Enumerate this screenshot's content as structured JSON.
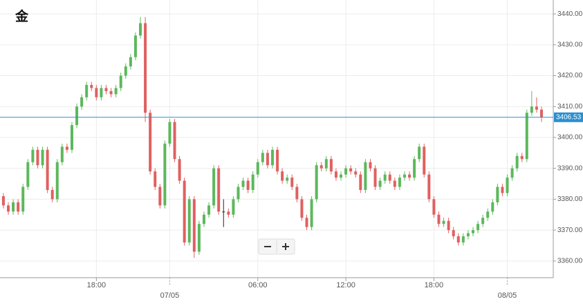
{
  "chart_data": {
    "type": "candlestick",
    "title": "金",
    "open": [
      3381,
      3378,
      3376,
      3379,
      3376,
      3384,
      3392,
      3396,
      3391,
      3396,
      3383,
      3380,
      3392,
      3397,
      3396,
      3404,
      3410,
      3413,
      3417,
      3416,
      3413,
      3416,
      3415,
      3414,
      3416,
      3420,
      3423,
      3426,
      3433,
      3437,
      3408,
      3389,
      3384,
      3378,
      3398,
      3405,
      3393,
      3386,
      3366,
      3380,
      3363,
      3372,
      3375,
      3378,
      3390,
      3376,
      3376,
      3375,
      3380,
      3384,
      3386,
      3383,
      3388,
      3392,
      3395,
      3391,
      3396,
      3389,
      3386,
      3387,
      3384,
      3380,
      3374,
      3371,
      3380,
      3391,
      3390,
      3393,
      3389,
      3387,
      3388,
      3390,
      3389,
      3388,
      3383,
      3392,
      3390,
      3384,
      3386,
      3388,
      3386,
      3384,
      3387,
      3388,
      3387,
      3393,
      3397,
      3388,
      3380,
      3375,
      3372,
      3373,
      3370,
      3368,
      3366,
      3368,
      3369,
      3370,
      3372,
      3374,
      3376,
      3379,
      3384,
      3382,
      3387,
      3390,
      3394,
      3393,
      3408,
      3410,
      3409
    ],
    "high": [
      3382,
      3379,
      3380,
      3380,
      3385,
      3393,
      3397,
      3397,
      3397,
      3397,
      3384,
      3393,
      3398,
      3398,
      3405,
      3411,
      3414,
      3418,
      3418,
      3417,
      3417,
      3417,
      3416,
      3417,
      3421,
      3424,
      3427,
      3434,
      3439,
      3439,
      3409,
      3390,
      3385,
      3399,
      3406,
      3406,
      3394,
      3387,
      3381,
      3381,
      3373,
      3376,
      3379,
      3391,
      3391,
      3380,
      3377,
      3381,
      3385,
      3387,
      3387,
      3389,
      3393,
      3396,
      3396,
      3397,
      3397,
      3390,
      3388,
      3388,
      3385,
      3381,
      3375,
      3381,
      3392,
      3392,
      3394,
      3394,
      3390,
      3389,
      3391,
      3391,
      3390,
      3389,
      3393,
      3393,
      3391,
      3387,
      3389,
      3389,
      3387,
      3388,
      3389,
      3389,
      3394,
      3398,
      3398,
      3389,
      3381,
      3376,
      3374,
      3374,
      3371,
      3369,
      3369,
      3370,
      3371,
      3373,
      3375,
      3377,
      3380,
      3385,
      3385,
      3388,
      3391,
      3395,
      3395,
      3409,
      3415,
      3413,
      3410
    ],
    "low": [
      3377,
      3375,
      3375,
      3375,
      3375,
      3383,
      3391,
      3390,
      3390,
      3382,
      3379,
      3379,
      3391,
      3395,
      3395,
      3403,
      3409,
      3412,
      3415,
      3412,
      3412,
      3414,
      3413,
      3413,
      3415,
      3419,
      3422,
      3425,
      3432,
      3405,
      3388,
      3383,
      3377,
      3377,
      3397,
      3392,
      3385,
      3365,
      3365,
      3361,
      3362,
      3371,
      3374,
      3377,
      3375,
      3371,
      3374,
      3374,
      3379,
      3383,
      3382,
      3382,
      3387,
      3391,
      3390,
      3390,
      3388,
      3385,
      3385,
      3383,
      3379,
      3373,
      3370,
      3370,
      3379,
      3389,
      3389,
      3388,
      3386,
      3386,
      3387,
      3388,
      3387,
      3382,
      3382,
      3389,
      3383,
      3383,
      3385,
      3385,
      3383,
      3383,
      3386,
      3386,
      3386,
      3392,
      3387,
      3379,
      3374,
      3371,
      3371,
      3369,
      3367,
      3365,
      3365,
      3367,
      3368,
      3369,
      3371,
      3373,
      3375,
      3378,
      3381,
      3381,
      3386,
      3389,
      3392,
      3392,
      3407,
      3408,
      3405
    ],
    "close": [
      3378,
      3376,
      3379,
      3376,
      3384,
      3392,
      3396,
      3391,
      3396,
      3383,
      3380,
      3392,
      3397,
      3396,
      3404,
      3410,
      3413,
      3417,
      3416,
      3413,
      3416,
      3415,
      3414,
      3416,
      3420,
      3423,
      3426,
      3433,
      3437,
      3408,
      3389,
      3384,
      3378,
      3398,
      3405,
      3393,
      3386,
      3366,
      3380,
      3363,
      3372,
      3375,
      3378,
      3390,
      3376,
      3376,
      3375,
      3380,
      3384,
      3386,
      3383,
      3388,
      3392,
      3395,
      3391,
      3396,
      3389,
      3386,
      3387,
      3384,
      3380,
      3374,
      3371,
      3380,
      3391,
      3390,
      3393,
      3389,
      3387,
      3388,
      3390,
      3389,
      3388,
      3383,
      3392,
      3390,
      3384,
      3386,
      3388,
      3386,
      3384,
      3387,
      3388,
      3387,
      3393,
      3397,
      3388,
      3380,
      3375,
      3372,
      3373,
      3370,
      3368,
      3366,
      3368,
      3369,
      3370,
      3372,
      3374,
      3376,
      3379,
      3384,
      3382,
      3387,
      3390,
      3394,
      3393,
      3408,
      3410,
      3409,
      3406.53
    ],
    "up_color": "#5cb85c",
    "down_color": "#e06060",
    "flat_color": "#222",
    "last_price": 3406.53,
    "last_price_color": "#2a8fd0",
    "ylim": [
      3354.6,
      3444.5
    ],
    "yticks": [
      {
        "value": 3360,
        "label": "3360.00"
      },
      {
        "value": 3370,
        "label": "3370.00"
      },
      {
        "value": 3380,
        "label": "3380.00"
      },
      {
        "value": 3390,
        "label": "3390.00"
      },
      {
        "value": 3400,
        "label": "3400.00"
      },
      {
        "value": 3410,
        "label": "3410.00"
      },
      {
        "value": 3420,
        "label": "3420.00"
      },
      {
        "value": 3430,
        "label": "3430.00"
      },
      {
        "value": 3440,
        "label": "3440.00"
      }
    ],
    "xlim": [
      -0.7,
      112.4
    ],
    "xticks": [
      {
        "value": 19,
        "label": "18:00"
      },
      {
        "value": 34,
        "label": "07/05"
      },
      {
        "value": 52,
        "label": "06:00"
      },
      {
        "value": 70,
        "label": "12:00"
      },
      {
        "value": 88,
        "label": "18:00"
      },
      {
        "value": 103,
        "label": "08/05"
      }
    ],
    "grid": true
  }
}
